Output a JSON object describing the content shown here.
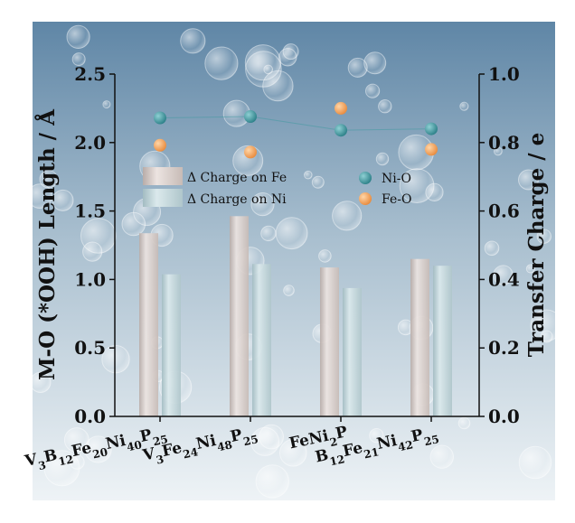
{
  "chart_data": {
    "type": "bar",
    "categories": [
      {
        "parts": [
          [
            "V",
            "3"
          ],
          [
            "B",
            "12"
          ],
          [
            "Fe",
            "20"
          ],
          [
            "Ni",
            "40"
          ],
          [
            "P",
            "25"
          ]
        ]
      },
      {
        "parts": [
          [
            "V",
            "3"
          ],
          [
            "Fe",
            "24"
          ],
          [
            "Ni",
            "48"
          ],
          [
            "P",
            "25"
          ]
        ]
      },
      {
        "parts": [
          [
            "Fe",
            ""
          ],
          [
            "Ni",
            "2"
          ],
          [
            "P",
            ""
          ]
        ]
      },
      {
        "parts": [
          [
            "B",
            "12"
          ],
          [
            "Fe",
            "21"
          ],
          [
            "Ni",
            "42"
          ],
          [
            "P",
            "25"
          ]
        ]
      }
    ],
    "category_labels": [
      "V3B12Fe20Ni40P25",
      "V3Fe24Ni48P25",
      "FeNi2P",
      "B12Fe21Ni42P25"
    ],
    "bar_series": [
      {
        "name": "Δ Charge on Fe",
        "axis": "right",
        "values": [
          0.535,
          0.585,
          0.435,
          0.46
        ],
        "color": "#d9cdc8"
      },
      {
        "name": "Δ Charge on Ni",
        "axis": "right",
        "values": [
          0.415,
          0.445,
          0.375,
          0.44
        ],
        "color": "#bcd2d6"
      }
    ],
    "point_series": [
      {
        "name": "Ni-O",
        "axis": "left",
        "values": [
          2.18,
          2.19,
          2.09,
          2.1
        ],
        "color": "#3e9aa0",
        "connect": true
      },
      {
        "name": "Fe-O",
        "axis": "left",
        "values": [
          1.98,
          1.93,
          2.25,
          1.95
        ],
        "color": "#f0a05a",
        "connect": false
      }
    ],
    "y_left": {
      "label": "M-O (*OOH)  Length / Å",
      "range": [
        0.0,
        2.5
      ],
      "ticks": [
        "0.0",
        "0.5",
        "1.0",
        "1.5",
        "2.0",
        "2.5"
      ]
    },
    "y_right": {
      "label": "Transfer Charge / e",
      "range": [
        0.0,
        1.0
      ],
      "ticks": [
        "0.0",
        "0.2",
        "0.4",
        "0.6",
        "0.8",
        "1.0"
      ]
    },
    "grid": false,
    "legend_placement": "upper-middle"
  }
}
